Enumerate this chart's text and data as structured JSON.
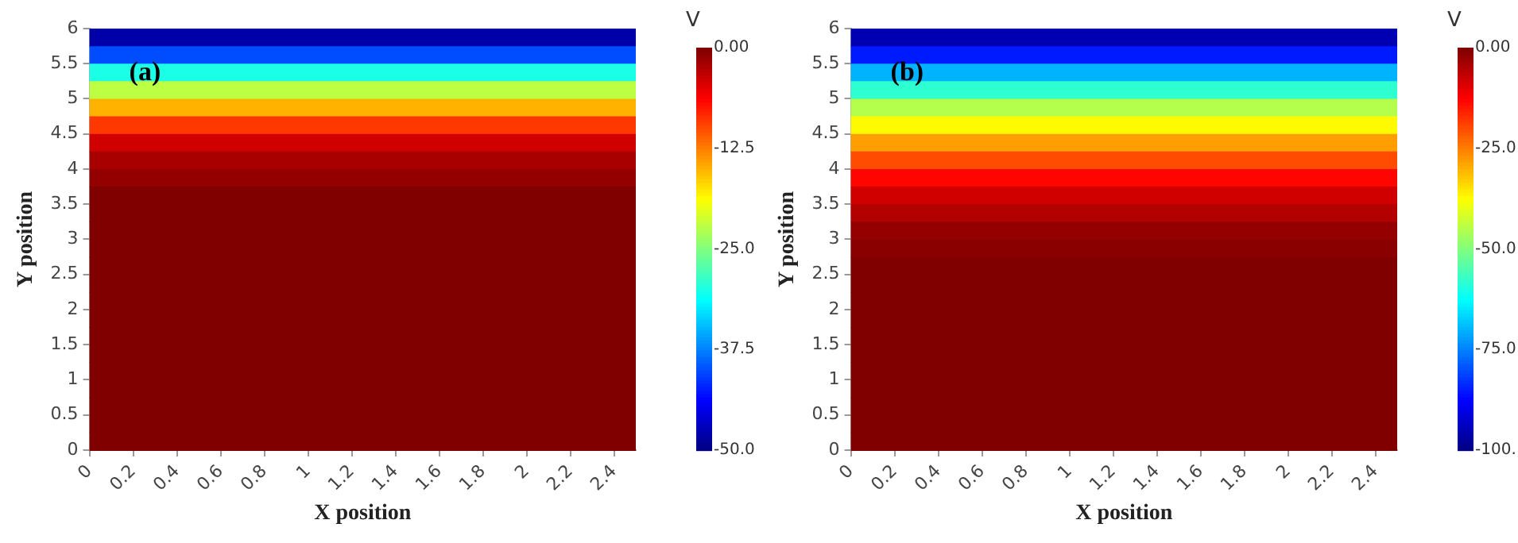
{
  "chart_data": [
    {
      "type": "heatmap",
      "xlabel": "X position",
      "ylabel": "Y position",
      "clabel": "V",
      "annotations": [
        "(a)"
      ],
      "cells": [
        [
          -48
        ],
        [
          -40
        ],
        [
          -30
        ],
        [
          -22
        ],
        [
          -15
        ],
        [
          -9
        ],
        [
          -4
        ],
        [
          -2
        ],
        [
          -1
        ],
        [
          0
        ],
        [
          0
        ],
        [
          0
        ],
        [
          0
        ],
        [
          0
        ],
        [
          0
        ],
        [
          0
        ],
        [
          0
        ],
        [
          0
        ],
        [
          0
        ],
        [
          0
        ],
        [
          0
        ],
        [
          0
        ],
        [
          0
        ],
        [
          0
        ]
      ],
      "xlim": [
        0,
        2.5
      ],
      "xticks": [
        0,
        0.2,
        0.4,
        0.6,
        0.8,
        1,
        1.2,
        1.4,
        1.6,
        1.8,
        2,
        2.2,
        2.4
      ],
      "ylim": [
        0,
        6
      ],
      "yticks": [
        0,
        0.5,
        1,
        1.5,
        2,
        2.5,
        3,
        3.5,
        4,
        4.5,
        5,
        5.5,
        6
      ],
      "clim": [
        -50,
        0
      ],
      "cticks": [
        {
          "value": 0,
          "label": "0.00"
        },
        -12.5,
        {
          "value": -25,
          "label": "-25.0"
        },
        -37.5,
        {
          "value": -50,
          "label": "-50.0"
        }
      ],
      "grid": false
    },
    {
      "type": "heatmap",
      "xlabel": "X position",
      "ylabel": "Y position",
      "clabel": "V",
      "annotations": [
        "(b)"
      ],
      "cells": [
        [
          -95
        ],
        [
          -85
        ],
        [
          -70
        ],
        [
          -58
        ],
        [
          -45
        ],
        [
          -37
        ],
        [
          -28
        ],
        [
          -20
        ],
        [
          -13
        ],
        [
          -8
        ],
        [
          -5
        ],
        [
          -2
        ],
        [
          -1
        ],
        [
          0
        ],
        [
          0
        ],
        [
          0
        ],
        [
          0
        ],
        [
          0
        ],
        [
          0
        ],
        [
          0
        ],
        [
          0
        ],
        [
          0
        ],
        [
          0
        ],
        [
          0
        ]
      ],
      "xlim": [
        0,
        2.5
      ],
      "xticks": [
        0,
        0.2,
        0.4,
        0.6,
        0.8,
        1,
        1.2,
        1.4,
        1.6,
        1.8,
        2,
        2.2,
        2.4
      ],
      "ylim": [
        0,
        6
      ],
      "yticks": [
        0,
        0.5,
        1,
        1.5,
        2,
        2.5,
        3,
        3.5,
        4,
        4.5,
        5,
        5.5,
        6
      ],
      "clim": [
        -100,
        0
      ],
      "cticks": [
        {
          "value": 0,
          "label": "0.00"
        },
        {
          "value": -25,
          "label": "-25.0"
        },
        {
          "value": -50,
          "label": "-50.0"
        },
        {
          "value": -75,
          "label": "-75.0"
        },
        {
          "value": -100,
          "label": "-100."
        }
      ],
      "grid": false
    }
  ]
}
